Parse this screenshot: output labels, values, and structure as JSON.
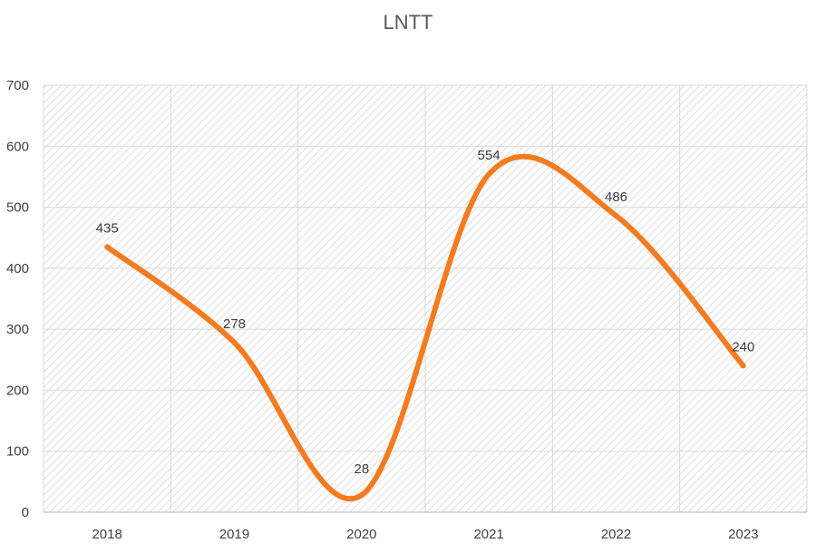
{
  "chart_data": {
    "type": "line",
    "title": "LNTT",
    "xlabel": "",
    "ylabel": "",
    "categories": [
      "2018",
      "2019",
      "2020",
      "2021",
      "2022",
      "2023"
    ],
    "series": [
      {
        "values": [
          435,
          278,
          28,
          554,
          486,
          240
        ]
      }
    ],
    "data_labels": [
      "435",
      "278",
      "28",
      "554",
      "486",
      "240"
    ],
    "y_ticks": [
      "0",
      "100",
      "200",
      "300",
      "400",
      "500",
      "600",
      "700"
    ],
    "ylim": [
      0,
      700
    ],
    "grid": true,
    "smooth": true,
    "colors": {
      "line": "#F47B20",
      "grid": "#d9d9d9",
      "hatch": "#c8c8c8",
      "text": "#404040",
      "title": "#595959"
    }
  }
}
